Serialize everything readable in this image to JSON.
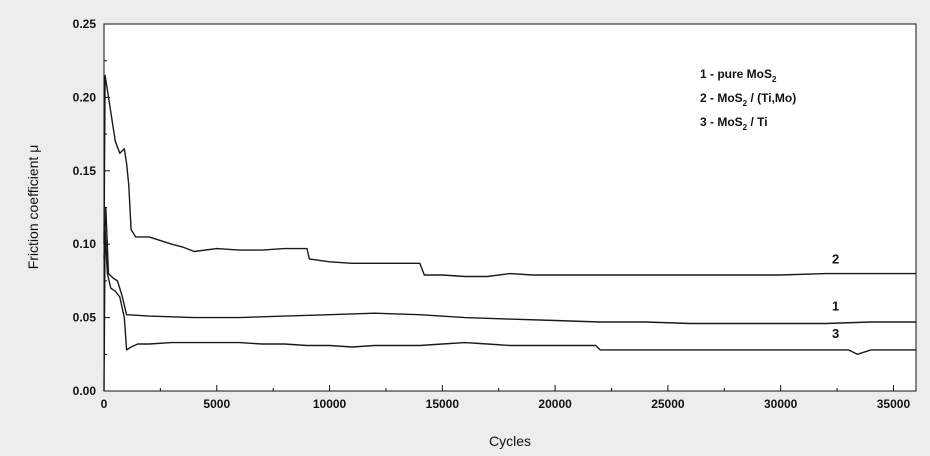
{
  "chart_data": {
    "type": "line",
    "title": "",
    "xlabel": "Cycles",
    "ylabel": "Friction coefficient μ",
    "xlim": [
      0,
      36000
    ],
    "ylim": [
      0,
      0.25
    ],
    "xticks": [
      0,
      5000,
      10000,
      15000,
      20000,
      25000,
      30000,
      35000
    ],
    "xtick_labels": [
      "0",
      "5000",
      "10000",
      "15000",
      "20000",
      "25000",
      "30000",
      "35000"
    ],
    "yticks": [
      0,
      0.05,
      0.1,
      0.15,
      0.2,
      0.25
    ],
    "ytick_labels": [
      "0.00",
      "0.05",
      "0.10",
      "0.15",
      "0.20",
      "0.25"
    ],
    "grid": false,
    "legend_position": "top-right",
    "legend": [
      {
        "prefix": "1 - pure MoS",
        "sub": "2",
        "suffix": ""
      },
      {
        "prefix": "2 - MoS",
        "sub": "2",
        "suffix": " / (Ti,Mo)"
      },
      {
        "prefix": "3 - MoS",
        "sub": "2",
        "suffix": " / Ti"
      }
    ],
    "series": [
      {
        "label": "1",
        "label_at": [
          30500,
          0.055
        ],
        "x": [
          0,
          80,
          200,
          400,
          600,
          800,
          1000,
          2000,
          4000,
          6000,
          8000,
          10000,
          12000,
          14000,
          16000,
          18000,
          20000,
          22000,
          24000,
          26000,
          28000,
          30000,
          32000,
          34000,
          36000
        ],
        "y": [
          0.09,
          0.125,
          0.08,
          0.077,
          0.075,
          0.065,
          0.052,
          0.051,
          0.05,
          0.05,
          0.051,
          0.052,
          0.053,
          0.052,
          0.05,
          0.049,
          0.048,
          0.047,
          0.047,
          0.046,
          0.046,
          0.046,
          0.046,
          0.047,
          0.047
        ]
      },
      {
        "label": "2",
        "label_at": [
          30500,
          0.087
        ],
        "x": [
          0,
          50,
          150,
          300,
          500,
          700,
          900,
          1000,
          1100,
          1200,
          1400,
          2000,
          3000,
          3500,
          4000,
          5000,
          6000,
          7000,
          8000,
          9000,
          9100,
          10000,
          11000,
          12000,
          13000,
          14000,
          14200,
          15000,
          16000,
          17000,
          18000,
          19000,
          20000,
          22000,
          24000,
          26000,
          28000,
          30000,
          32000,
          34000,
          36000
        ],
        "y": [
          0.1,
          0.215,
          0.205,
          0.19,
          0.17,
          0.162,
          0.165,
          0.155,
          0.14,
          0.11,
          0.105,
          0.105,
          0.1,
          0.098,
          0.095,
          0.097,
          0.096,
          0.096,
          0.097,
          0.097,
          0.09,
          0.088,
          0.087,
          0.087,
          0.087,
          0.087,
          0.079,
          0.079,
          0.078,
          0.078,
          0.08,
          0.079,
          0.079,
          0.079,
          0.079,
          0.079,
          0.079,
          0.079,
          0.08,
          0.08,
          0.08
        ]
      },
      {
        "label": "3",
        "label_at": [
          30500,
          0.036
        ],
        "x": [
          0,
          50,
          150,
          300,
          500,
          700,
          900,
          1000,
          1200,
          1500,
          2000,
          3000,
          4000,
          5000,
          6000,
          7000,
          8000,
          9000,
          10000,
          11000,
          12000,
          13000,
          14000,
          15000,
          16000,
          17000,
          18000,
          20000,
          21800,
          22000,
          24000,
          26000,
          28000,
          30000,
          32000,
          33000,
          33400,
          34000,
          36000
        ],
        "y": [
          0.0,
          0.11,
          0.08,
          0.07,
          0.068,
          0.064,
          0.05,
          0.028,
          0.03,
          0.032,
          0.032,
          0.033,
          0.033,
          0.033,
          0.033,
          0.032,
          0.032,
          0.031,
          0.031,
          0.03,
          0.031,
          0.031,
          0.031,
          0.032,
          0.033,
          0.032,
          0.031,
          0.031,
          0.031,
          0.028,
          0.028,
          0.028,
          0.028,
          0.028,
          0.028,
          0.028,
          0.025,
          0.028,
          0.028
        ]
      }
    ]
  }
}
